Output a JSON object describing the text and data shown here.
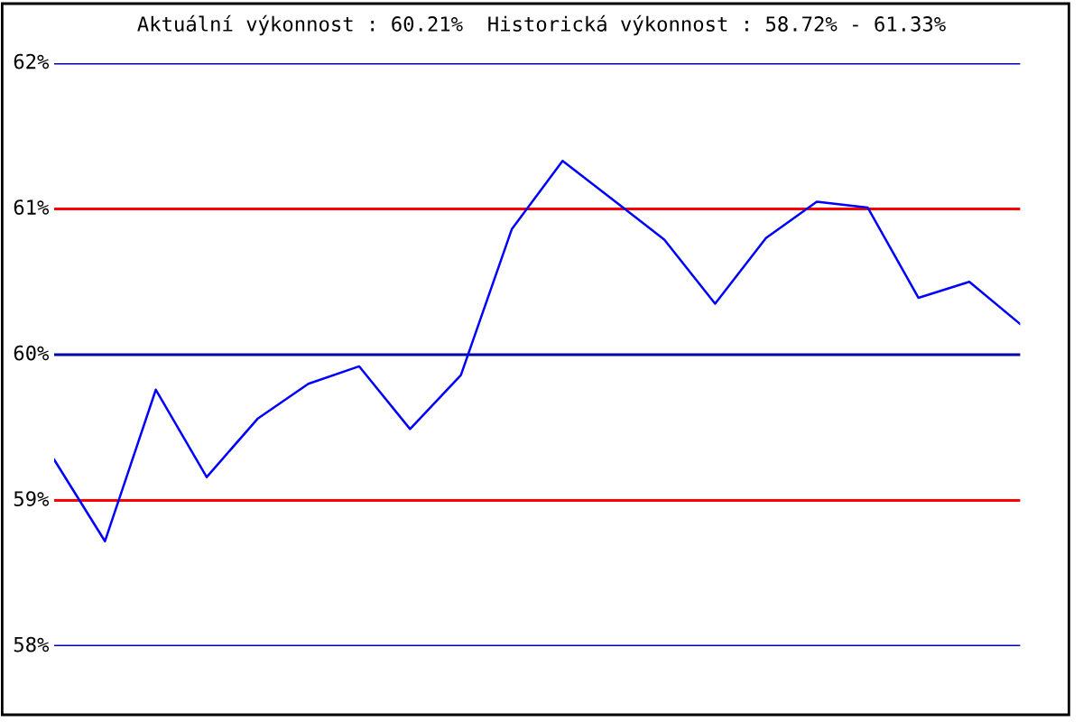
{
  "chart_data": {
    "type": "line",
    "title": "Aktuální výkonnost : 60.21%  Historická výkonnost : 58.72% - 61.33%",
    "categories": [
      null,
      null,
      null,
      null,
      null,
      null,
      null,
      null,
      null,
      null,
      null,
      null,
      null,
      null,
      null,
      null,
      null,
      null,
      null,
      null
    ],
    "series": [
      {
        "color": "#0000ff",
        "values": [
          59.28,
          58.72,
          59.76,
          59.16,
          59.56,
          59.8,
          59.92,
          59.49,
          59.86,
          60.86,
          61.33,
          61.06,
          60.79,
          60.35,
          60.8,
          61.05,
          61.01,
          60.39,
          60.5,
          60.21
        ]
      }
    ],
    "ylim": [
      58,
      62
    ],
    "yticks": [
      {
        "value": 58,
        "label": "58%"
      },
      {
        "value": 59,
        "label": "59%"
      },
      {
        "value": 60,
        "label": "60%"
      },
      {
        "value": 61,
        "label": "61%"
      },
      {
        "value": 62,
        "label": "62%"
      }
    ],
    "ref_lines": [
      {
        "axis": "y",
        "value": 58,
        "color": "#0000aa"
      },
      {
        "axis": "y",
        "value": 59,
        "color": "#ff0000"
      },
      {
        "axis": "y",
        "value": 60,
        "color": "#0000aa"
      },
      {
        "axis": "y",
        "value": 61,
        "color": "#ff0000"
      },
      {
        "axis": "y",
        "value": 62,
        "color": "#0000aa"
      }
    ],
    "tick_labels": "y",
    "marker": "none",
    "line_style": "solid"
  }
}
